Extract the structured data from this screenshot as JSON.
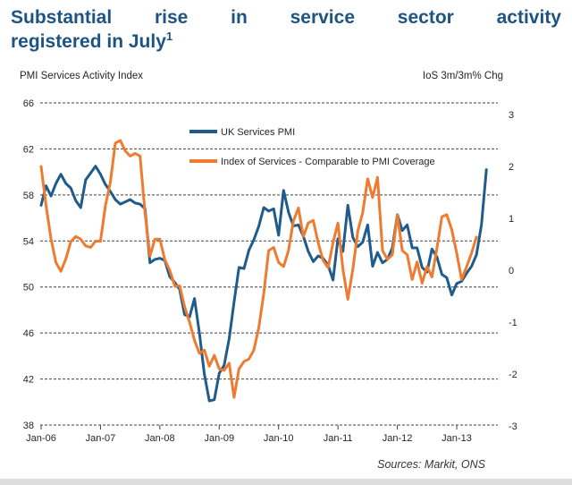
{
  "header": {
    "title_line1": "Substantial rise in service sector activity",
    "title_line2": "registered in July",
    "title_superscript": "1"
  },
  "subtitles": {
    "left": "PMI Services Activity Index",
    "right": "IoS 3m/3m% Chg"
  },
  "footer": {
    "sources": "Sources: Markit, ONS"
  },
  "colors": {
    "title_blue": "#1d5483",
    "pmi_line": "#1F5C8C",
    "ios_line": "#EE7B30",
    "grid": "#404040",
    "axis_text": "#262626"
  },
  "chart_data": {
    "type": "line",
    "frequency": "monthly",
    "grid": "dashed-horizontal",
    "legend_position": "inside-top",
    "x_tick_labels": [
      "Jan-06",
      "Jan-07",
      "Jan-08",
      "Jan-09",
      "Jan-10",
      "Jan-11",
      "Jan-12",
      "Jan-13"
    ],
    "left_axis": {
      "title": "PMI Services Activity Index",
      "ticks": [
        66,
        62,
        58,
        54,
        50,
        46,
        42,
        38
      ],
      "range": [
        38,
        66
      ]
    },
    "right_axis": {
      "title": "IoS 3m/3m% Chg",
      "ticks": [
        3,
        2,
        1,
        0,
        -1,
        -2,
        -3
      ],
      "range": [
        -3,
        3
      ]
    },
    "series": [
      {
        "name": "UK Services PMI",
        "axis": "left",
        "color": "#1F5C8C",
        "start": "Jan-06",
        "end": "Jul-13",
        "values": [
          57.1,
          58.8,
          57.9,
          59.0,
          59.8,
          59.0,
          58.6,
          57.5,
          56.9,
          59.3,
          59.9,
          60.5,
          59.8,
          58.9,
          58.3,
          57.6,
          57.2,
          57.4,
          57.6,
          57.3,
          57.2,
          56.8,
          52.1,
          52.4,
          52.5,
          52.3,
          50.9,
          50.4,
          49.8,
          47.6,
          47.4,
          49.0,
          46.0,
          42.4,
          40.1,
          40.2,
          42.5,
          43.2,
          45.5,
          48.7,
          51.7,
          51.6,
          53.2,
          54.1,
          55.3,
          56.9,
          56.6,
          56.8,
          54.5,
          58.4,
          56.5,
          55.3,
          55.4,
          54.4,
          53.1,
          52.2,
          52.7,
          52.5,
          51.9,
          50.6,
          54.2,
          53.1,
          57.1,
          54.3,
          53.5,
          53.9,
          55.4,
          51.8,
          53.0,
          52.1,
          52.4,
          53.4,
          56.3,
          54.9,
          55.4,
          53.4,
          53.4,
          51.7,
          51.3,
          53.3,
          52.6,
          51.1,
          50.8,
          49.3,
          50.3,
          50.5,
          51.2,
          51.8,
          52.8,
          55.4,
          60.2
        ]
      },
      {
        "name": "Index of Services - Comparable to PMI Coverage",
        "axis": "right",
        "color": "#EE7B30",
        "start": "Jan-06",
        "end": "May-13",
        "values": [
          2.0,
          1.25,
          0.6,
          0.15,
          -0.02,
          0.22,
          0.55,
          0.65,
          0.6,
          0.47,
          0.44,
          0.56,
          0.56,
          1.25,
          1.7,
          2.45,
          2.5,
          2.3,
          2.2,
          2.25,
          2.2,
          1.1,
          0.27,
          0.6,
          0.6,
          0.2,
          0.0,
          -0.3,
          -0.3,
          -0.7,
          -1.0,
          -1.35,
          -1.6,
          -1.54,
          -1.85,
          -1.64,
          -1.9,
          -1.93,
          -1.79,
          -2.45,
          -1.9,
          -1.76,
          -1.71,
          -1.54,
          -1.1,
          -0.45,
          0.38,
          0.44,
          0.15,
          0.07,
          0.38,
          0.95,
          1.2,
          0.65,
          0.91,
          0.96,
          0.53,
          0.19,
          0.05,
          0.53,
          0.91,
          0.02,
          -0.56,
          0.02,
          0.75,
          1.11,
          1.76,
          1.4,
          1.79,
          0.38,
          0.21,
          0.3,
          1.07,
          0.38,
          0.3,
          -0.18,
          0.16,
          -0.25,
          0.07,
          -0.13,
          0.43,
          1.03,
          1.07,
          0.78,
          0.33,
          -0.18,
          0.07,
          0.33,
          0.64
        ]
      }
    ]
  }
}
